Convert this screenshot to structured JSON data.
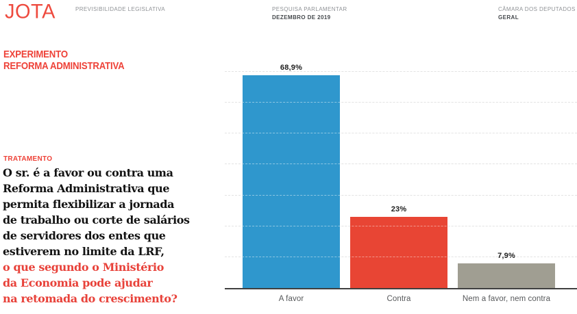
{
  "header": {
    "logo": "JOTA",
    "program": "PREVISIBILIDADE LEGISLATIVA",
    "survey_label": "PESQUISA PARLAMENTAR",
    "survey_value": "DEZEMBRO DE 2019",
    "chamber_label": "CÂMARA DOS DEPUTADOS",
    "chamber_value": "GERAL"
  },
  "experiment": {
    "kicker": "EXPERIMENTO\nREFORMA ADMINISTRATIVA",
    "treatment_label": "TRATAMENTO",
    "question_black": "O sr. é a favor ou contra uma\nReforma Administrativa que\npermita flexibilizar a jornada\nde trabalho ou corte de salários\nde servidores dos entes que\nestiverem no limite da LRF,",
    "question_red": "o que segundo o Ministério\nda Economia pode ajudar\nna retomada do crescimento?"
  },
  "chart_data": {
    "type": "bar",
    "title": "",
    "xlabel": "",
    "ylabel": "",
    "categories": [
      "A favor",
      "Contra",
      "Nem a favor, nem contra"
    ],
    "values": [
      68.9,
      23,
      7.9
    ],
    "value_labels": [
      "68,9%",
      "23%",
      "7,9%"
    ],
    "bar_colors": [
      "#2f97cd",
      "#e84534",
      "#a09e92"
    ],
    "ylim": [
      0,
      70
    ],
    "gridline_step": 10,
    "grid": "horizontal-dashed",
    "legend": "none"
  },
  "colors": {
    "brand_red": "#e8423a",
    "bar_blue": "#2f97cd",
    "bar_red": "#e84534",
    "bar_gray": "#a09e92",
    "gridline": "#cdcdcd",
    "axis": "#3f3f3f"
  }
}
